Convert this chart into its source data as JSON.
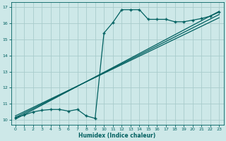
{
  "xlabel": "Humidex (Indice chaleur)",
  "bg_color": "#cde8e8",
  "grid_color": "#a8cccc",
  "line_color": "#006060",
  "xlim": [
    -0.5,
    23.5
  ],
  "ylim": [
    9.7,
    17.3
  ],
  "xticks": [
    0,
    1,
    2,
    3,
    4,
    5,
    6,
    7,
    8,
    9,
    10,
    11,
    12,
    13,
    14,
    15,
    16,
    17,
    18,
    19,
    20,
    21,
    22,
    23
  ],
  "yticks": [
    10,
    11,
    12,
    13,
    14,
    15,
    16,
    17
  ],
  "series1_x": [
    0,
    1,
    2,
    3,
    4,
    5,
    6,
    7,
    8,
    9,
    10,
    11,
    12,
    13,
    14,
    15,
    16,
    17,
    18,
    19,
    20,
    21,
    22,
    23
  ],
  "series1_y": [
    10.15,
    10.3,
    10.5,
    10.6,
    10.65,
    10.65,
    10.55,
    10.65,
    10.25,
    10.1,
    15.4,
    16.05,
    16.85,
    16.85,
    16.85,
    16.25,
    16.25,
    16.25,
    16.1,
    16.1,
    16.2,
    16.3,
    16.45,
    16.7
  ],
  "line1_x": [
    0,
    23
  ],
  "line1_y": [
    10.15,
    16.55
  ],
  "line2_x": [
    0,
    23
  ],
  "line2_y": [
    10.05,
    16.75
  ],
  "line3_x": [
    0,
    23
  ],
  "line3_y": [
    10.25,
    16.35
  ]
}
